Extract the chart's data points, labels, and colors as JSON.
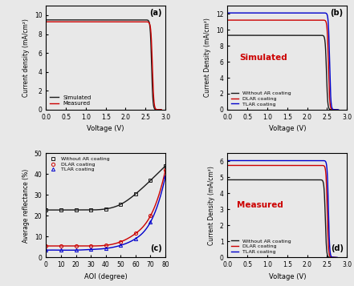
{
  "panel_a": {
    "title": "(a)",
    "xlabel": "Voltage (V)",
    "ylabel": "Current density (mA/cm²)",
    "xlim": [
      0,
      3.0
    ],
    "ylim": [
      0,
      11
    ],
    "yticks": [
      0,
      2,
      4,
      6,
      8,
      10
    ],
    "xticks": [
      0,
      0.5,
      1.0,
      1.5,
      2.0,
      2.5,
      3.0
    ],
    "simulated_color": "#1a1a1a",
    "measured_color": "#cc0000",
    "legend": [
      "Simulated",
      "Measured"
    ],
    "Jsc_sim": 9.5,
    "Jsc_meas": 9.3,
    "Voc_sim": 2.72,
    "Voc_meas": 2.74,
    "sharpness_sim": 60,
    "sharpness_meas": 55
  },
  "panel_b": {
    "title": "(b)",
    "label": "Simulated",
    "label_color": "#cc0000",
    "xlabel": "Voltage (V)",
    "ylabel": "Current Density (mA/cm²)",
    "xlim": [
      0,
      3.0
    ],
    "ylim": [
      0,
      13
    ],
    "yticks": [
      0,
      2,
      4,
      6,
      8,
      10,
      12
    ],
    "xticks": [
      0,
      0.5,
      1.0,
      1.5,
      2.0,
      2.5,
      3.0
    ],
    "no_ar_Jsc": 9.3,
    "dlar_Jsc": 11.2,
    "tlar_Jsc": 12.1,
    "no_ar_color": "#1a1a1a",
    "dlar_color": "#cc0000",
    "tlar_color": "#0000cc",
    "no_ar_Voc": 2.55,
    "dlar_Voc": 2.6,
    "tlar_Voc": 2.63,
    "sharpness": 65,
    "legend": [
      "Without AR coating",
      "DLAR coating",
      "TLAR coating"
    ]
  },
  "panel_c": {
    "title": "(c)",
    "xlabel": "AOI (degree)",
    "ylabel": "Average reflectance (%)",
    "xlim": [
      0,
      80
    ],
    "ylim": [
      0,
      50
    ],
    "yticks": [
      0,
      10,
      20,
      30,
      40,
      50
    ],
    "xticks": [
      0,
      10,
      20,
      30,
      40,
      50,
      60,
      70,
      80
    ],
    "aoi": [
      0,
      10,
      20,
      30,
      40,
      50,
      60,
      70,
      80
    ],
    "no_ar": [
      22.8,
      22.8,
      22.8,
      22.8,
      23.3,
      25.5,
      30.5,
      37.0,
      44.0
    ],
    "dlar": [
      5.5,
      5.5,
      5.5,
      5.5,
      5.8,
      7.5,
      11.5,
      20.0,
      42.0
    ],
    "tlar": [
      3.5,
      3.5,
      3.5,
      3.8,
      4.3,
      5.8,
      9.0,
      17.0,
      39.0
    ],
    "no_ar_color": "#1a1a1a",
    "dlar_color": "#cc0000",
    "tlar_color": "#0000cc",
    "legend": [
      "Without AR coating",
      "DLAR coating",
      "TLAR coating"
    ]
  },
  "panel_d": {
    "title": "(d)",
    "label": "Measured",
    "label_color": "#cc0000",
    "xlabel": "Voltage (V)",
    "ylabel": "Current Density (mA/cm²)",
    "xlim": [
      0,
      3.0
    ],
    "ylim": [
      0,
      6.5
    ],
    "yticks": [
      0,
      1,
      2,
      3,
      4,
      5,
      6
    ],
    "xticks": [
      0,
      0.5,
      1.0,
      1.5,
      2.0,
      2.5,
      3.0
    ],
    "no_ar_Jsc": 4.85,
    "dlar_Jsc": 5.75,
    "tlar_Jsc": 6.05,
    "no_ar_Voc": 2.52,
    "dlar_Voc": 2.57,
    "tlar_Voc": 2.6,
    "sharpness": 65,
    "no_ar_color": "#1a1a1a",
    "dlar_color": "#cc0000",
    "tlar_color": "#0000cc",
    "legend": [
      "Without AR coating",
      "DLAR coating",
      "TLAR coating"
    ]
  },
  "fig_bg": "#e8e8e8"
}
